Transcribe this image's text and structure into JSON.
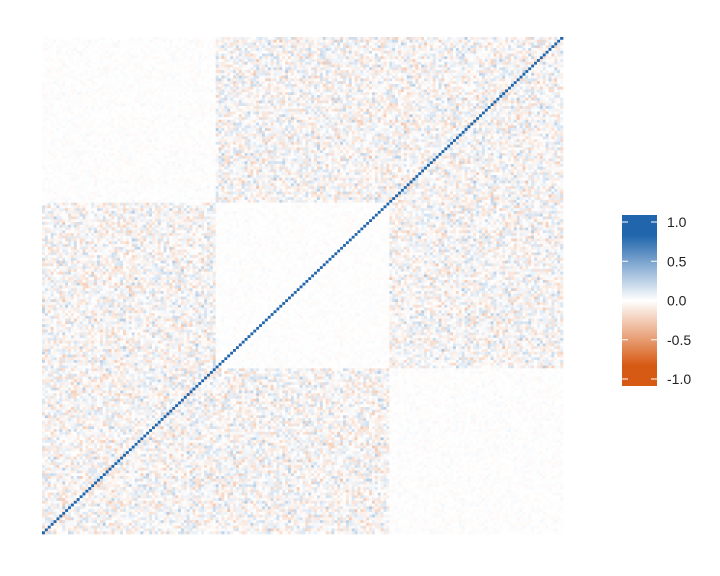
{
  "chart_data": {
    "type": "heatmap",
    "title": "",
    "xlabel": "",
    "ylabel": "",
    "matrix_size": 180,
    "diagonal_value": 1.0,
    "diagonal_direction": "bottom-left to top-right",
    "block_boundaries": [
      0,
      60,
      120,
      180
    ],
    "block_noise_amplitude": [
      [
        0.38,
        0.38,
        0.06
      ],
      [
        0.38,
        0.05,
        0.38
      ],
      [
        0.06,
        0.38,
        0.38
      ]
    ],
    "value_range": [
      -1.0,
      1.0
    ],
    "grid": false,
    "legend": {
      "placement": "right",
      "ticks": [
        {
          "value": 1.0,
          "label": "1.0"
        },
        {
          "value": 0.5,
          "label": "0.5"
        },
        {
          "value": 0.0,
          "label": "0.0"
        },
        {
          "value": -0.5,
          "label": "-0.5"
        },
        {
          "value": -1.0,
          "label": "-1.0"
        }
      ],
      "colors": {
        "high": "#2166AC",
        "mid": "#FFFFFF",
        "low": "#D75A14"
      }
    }
  }
}
